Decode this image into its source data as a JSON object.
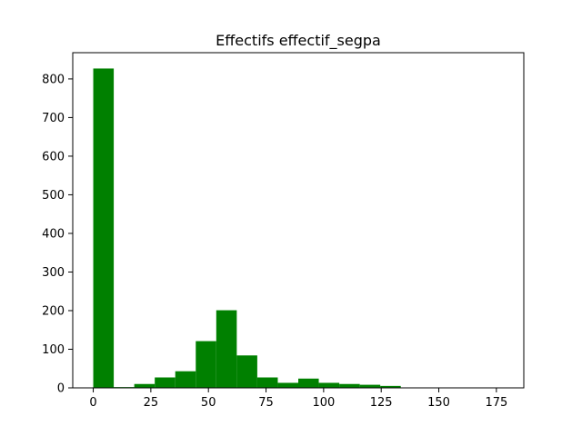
{
  "chart_data": {
    "type": "bar",
    "title": "Effectifs effectif_segpa",
    "xlabel": "",
    "ylabel": "",
    "xlim": [
      -8.9,
      186.9
    ],
    "ylim": [
      0,
      868
    ],
    "xticks": [
      0,
      25,
      50,
      75,
      100,
      125,
      150,
      175
    ],
    "yticks": [
      0,
      100,
      200,
      300,
      400,
      500,
      600,
      700,
      800
    ],
    "bar_color": "#008000",
    "bins": [
      {
        "x0": 0,
        "x1": 8.9,
        "value": 827
      },
      {
        "x0": 8.9,
        "x1": 17.8,
        "value": 2
      },
      {
        "x0": 17.8,
        "x1": 26.7,
        "value": 10
      },
      {
        "x0": 26.7,
        "x1": 35.6,
        "value": 27
      },
      {
        "x0": 35.6,
        "x1": 44.5,
        "value": 43
      },
      {
        "x0": 44.5,
        "x1": 53.4,
        "value": 121
      },
      {
        "x0": 53.4,
        "x1": 62.3,
        "value": 201
      },
      {
        "x0": 62.3,
        "x1": 71.2,
        "value": 84
      },
      {
        "x0": 71.2,
        "x1": 80.1,
        "value": 27
      },
      {
        "x0": 80.1,
        "x1": 89.0,
        "value": 13
      },
      {
        "x0": 89.0,
        "x1": 97.9,
        "value": 24
      },
      {
        "x0": 97.9,
        "x1": 106.8,
        "value": 13
      },
      {
        "x0": 106.8,
        "x1": 115.7,
        "value": 10
      },
      {
        "x0": 115.7,
        "x1": 124.6,
        "value": 8
      },
      {
        "x0": 124.6,
        "x1": 133.5,
        "value": 5
      },
      {
        "x0": 133.5,
        "x1": 142.4,
        "value": 0
      },
      {
        "x0": 142.4,
        "x1": 151.3,
        "value": 0
      },
      {
        "x0": 151.3,
        "x1": 160.2,
        "value": 0
      },
      {
        "x0": 160.2,
        "x1": 169.1,
        "value": 0
      },
      {
        "x0": 169.1,
        "x1": 178.0,
        "value": 1
      }
    ]
  }
}
